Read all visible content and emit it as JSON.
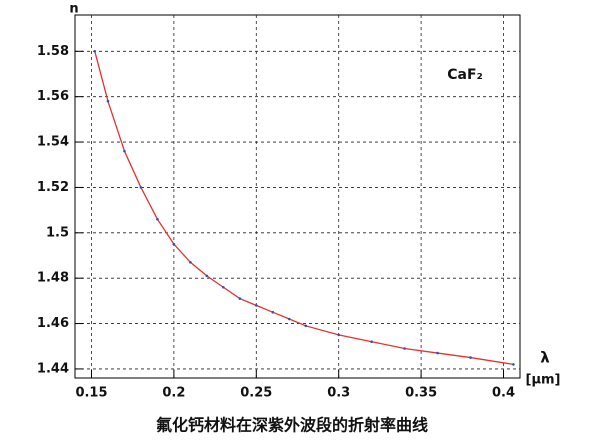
{
  "chart_data": {
    "type": "line",
    "x": [
      0.152,
      0.16,
      0.17,
      0.18,
      0.19,
      0.2,
      0.21,
      0.22,
      0.23,
      0.24,
      0.25,
      0.26,
      0.27,
      0.28,
      0.3,
      0.32,
      0.34,
      0.36,
      0.38,
      0.406
    ],
    "series": [
      {
        "color": "#e8312f",
        "marker_color": "#3050c0",
        "values": [
          1.58,
          1.558,
          1.536,
          1.52,
          1.506,
          1.495,
          1.487,
          1.481,
          1.476,
          1.471,
          1.468,
          1.465,
          1.462,
          1.459,
          1.455,
          1.452,
          1.449,
          1.447,
          1.445,
          1.442
        ]
      }
    ],
    "xlim": [
      0.14,
      0.41
    ],
    "ylim": [
      1.436,
      1.596
    ],
    "xticks": [
      0.15,
      0.2,
      0.25,
      0.3,
      0.35,
      0.4
    ],
    "yticks": [
      1.44,
      1.46,
      1.48,
      1.5,
      1.52,
      1.54,
      1.56,
      1.58
    ],
    "grid": true,
    "xlabel": "λ",
    "xunit": "[μm]",
    "ylabel": "n",
    "annotation": "CaF₂",
    "caption": "氟化钙材料在深紫外波段的折射率曲线"
  }
}
